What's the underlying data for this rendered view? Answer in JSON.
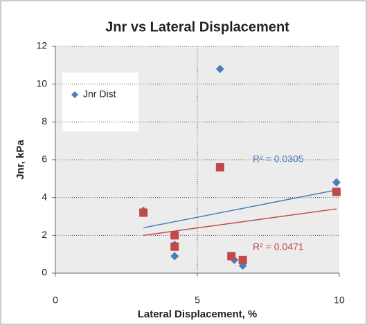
{
  "chart_data": {
    "type": "scatter",
    "title": "Jnr vs Lateral Displacement",
    "x_label": "Lateral Displacement, %",
    "y_label": "Jnr, kPa",
    "xlim": [
      0,
      10
    ],
    "xticks": [
      0,
      5,
      10
    ],
    "ylim": [
      0,
      12
    ],
    "yticks": [
      0,
      2,
      4,
      6,
      8,
      10,
      12
    ],
    "grid": true,
    "legend": "upper left",
    "series": [
      {
        "name": "Jnr Dist",
        "color": "#4a7ebb",
        "marker": "diamond",
        "x": [
          3.1,
          4.2,
          4.2,
          5.8,
          6.3,
          6.6,
          9.9
        ],
        "values": [
          3.3,
          0.9,
          1.5,
          10.8,
          0.7,
          0.4,
          4.8
        ],
        "trendline": {
          "x": [
            3.1,
            9.9
          ],
          "values": [
            2.4,
            4.4
          ]
        },
        "annotation": "R² = 0.0305"
      },
      {
        "color": "#be4b48",
        "marker": "square",
        "x": [
          3.1,
          4.2,
          4.2,
          5.8,
          6.2,
          6.6,
          9.9
        ],
        "values": [
          3.2,
          2.0,
          1.4,
          5.6,
          0.9,
          0.7,
          4.3
        ],
        "trendline": {
          "x": [
            3.1,
            9.9
          ],
          "values": [
            2.0,
            3.4
          ]
        },
        "annotation": "R² = 0.0471"
      }
    ]
  }
}
